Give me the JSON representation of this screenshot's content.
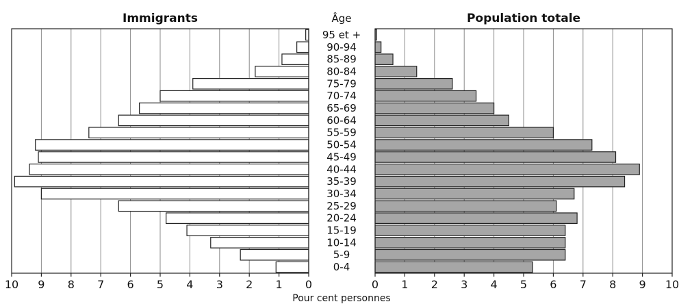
{
  "chart_data": [
    {
      "type": "bar",
      "orientation": "horizontal",
      "direction": "leftward",
      "title": "Immigrants",
      "categories_header": "Âge",
      "categories": [
        "0-4",
        "5-9",
        "10-14",
        "15-19",
        "20-24",
        "25-29",
        "30-34",
        "35-39",
        "40-44",
        "45-49",
        "50-54",
        "55-59",
        "60-64",
        "65-69",
        "70-74",
        "75-79",
        "80-84",
        "85-89",
        "90-94",
        "95 et +"
      ],
      "values": [
        1.1,
        2.3,
        3.3,
        4.1,
        4.8,
        6.4,
        9.0,
        9.9,
        9.4,
        9.1,
        9.2,
        7.4,
        6.4,
        5.7,
        5.0,
        3.9,
        1.8,
        0.9,
        0.4,
        0.1
      ],
      "xlim": [
        10,
        0
      ],
      "xticks": [
        "10",
        "9",
        "8",
        "7",
        "6",
        "5",
        "4",
        "3",
        "2",
        "1",
        "0"
      ],
      "xlabel": "Pour cent personnes",
      "grid": true,
      "bar_color": "#ffffff"
    },
    {
      "type": "bar",
      "orientation": "horizontal",
      "title": "Population totale",
      "categories": [
        "0-4",
        "5-9",
        "10-14",
        "15-19",
        "20-24",
        "25-29",
        "30-34",
        "35-39",
        "40-44",
        "45-49",
        "50-54",
        "55-59",
        "60-64",
        "65-69",
        "70-74",
        "75-79",
        "80-84",
        "85-89",
        "90-94",
        "95 et +"
      ],
      "values": [
        5.3,
        6.4,
        6.4,
        6.4,
        6.8,
        6.1,
        6.7,
        8.4,
        8.9,
        8.1,
        7.3,
        6.0,
        4.5,
        4.0,
        3.4,
        2.6,
        1.4,
        0.6,
        0.2,
        0.05
      ],
      "xlim": [
        0,
        10
      ],
      "xticks": [
        "0",
        "1",
        "2",
        "3",
        "4",
        "5",
        "6",
        "7",
        "8",
        "9",
        "10"
      ],
      "grid": true,
      "bar_color": "#a6a6a6"
    }
  ]
}
